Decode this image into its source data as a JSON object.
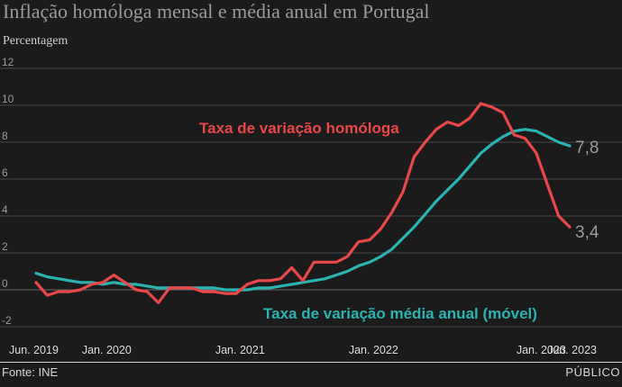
{
  "title": "Inflação homóloga mensal e média anual em Portugal",
  "footer": {
    "source": "Fonte: INE",
    "brand": "PÚBLICO"
  },
  "colors": {
    "homologa": "#e8484a",
    "media": "#2bb3b1",
    "background": "#1b1b1b"
  },
  "chart_data": {
    "type": "line",
    "ylabel": "Percentagem",
    "ylim": [
      -2,
      12
    ],
    "yticks": [
      "12",
      "10",
      "8",
      "6",
      "4",
      "2",
      "0",
      "-2"
    ],
    "ytick_values": [
      12,
      10,
      8,
      6,
      4,
      2,
      0,
      -2
    ],
    "xlabels": [
      "Jun. 2019",
      "Jan. 2020",
      "Jan. 2021",
      "Jan. 2022",
      "Jan. 2023",
      "Jun. 2023"
    ],
    "xlabel_index": [
      0,
      7,
      19,
      31,
      43,
      48
    ],
    "x": [
      "Jun. 2019",
      "Jul. 2019",
      "Ago. 2019",
      "Set. 2019",
      "Out. 2019",
      "Nov. 2019",
      "Dez. 2019",
      "Jan. 2020",
      "Fev. 2020",
      "Mar. 2020",
      "Abr. 2020",
      "Mai. 2020",
      "Jun. 2020",
      "Jul. 2020",
      "Ago. 2020",
      "Set. 2020",
      "Out. 2020",
      "Nov. 2020",
      "Dez. 2020",
      "Jan. 2021",
      "Fev. 2021",
      "Mar. 2021",
      "Abr. 2021",
      "Mai. 2021",
      "Jun. 2021",
      "Jul. 2021",
      "Ago. 2021",
      "Set. 2021",
      "Out. 2021",
      "Nov. 2021",
      "Dez. 2021",
      "Jan. 2022",
      "Fev. 2022",
      "Mar. 2022",
      "Abr. 2022",
      "Mai. 2022",
      "Jun. 2022",
      "Jul. 2022",
      "Ago. 2022",
      "Set. 2022",
      "Out. 2022",
      "Nov. 2022",
      "Dez. 2022",
      "Jan. 2023",
      "Fev. 2023",
      "Mar. 2023",
      "Abr. 2023",
      "Mai. 2023",
      "Jun. 2023"
    ],
    "series": [
      {
        "name": "Taxa de variação homóloga",
        "end_label": "3,4",
        "values": [
          0.4,
          -0.3,
          -0.1,
          -0.1,
          0.0,
          0.3,
          0.4,
          0.8,
          0.4,
          0.0,
          -0.1,
          -0.7,
          0.1,
          0.1,
          0.1,
          -0.1,
          -0.1,
          -0.2,
          -0.2,
          0.3,
          0.5,
          0.5,
          0.6,
          1.2,
          0.5,
          1.5,
          1.5,
          1.5,
          1.8,
          2.6,
          2.7,
          3.3,
          4.2,
          5.3,
          7.2,
          8.0,
          8.7,
          9.1,
          8.9,
          9.3,
          10.1,
          9.9,
          9.6,
          8.4,
          8.2,
          7.4,
          5.7,
          4.0,
          3.4
        ]
      },
      {
        "name": "Taxa de variação média anual (móvel)",
        "end_label": "7,8",
        "values": [
          0.9,
          0.7,
          0.6,
          0.5,
          0.4,
          0.4,
          0.3,
          0.4,
          0.3,
          0.3,
          0.2,
          0.1,
          0.1,
          0.1,
          0.1,
          0.1,
          0.1,
          0.0,
          0.0,
          0.0,
          0.1,
          0.1,
          0.2,
          0.3,
          0.4,
          0.5,
          0.6,
          0.8,
          1.0,
          1.3,
          1.5,
          1.8,
          2.2,
          2.8,
          3.4,
          4.1,
          4.8,
          5.4,
          6.0,
          6.7,
          7.4,
          7.9,
          8.3,
          8.6,
          8.7,
          8.6,
          8.3,
          8.0,
          7.8
        ]
      }
    ]
  }
}
